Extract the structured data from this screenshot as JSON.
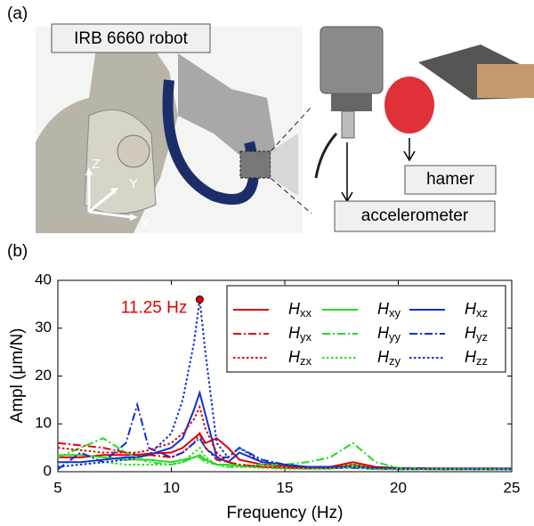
{
  "panel_a": {
    "label": "(a)",
    "robot_label": "IRB 6660 robot",
    "axis_labels": [
      "Z",
      "Y",
      "X"
    ],
    "hammer_label": "hamer",
    "sensor_label": "accelerometer"
  },
  "chart_data": {
    "type": "line",
    "panel_label": "(b)",
    "x_label": "Frequency (Hz)",
    "y_label": "Ampl (μm/N)",
    "xlim": [
      5,
      25
    ],
    "xticks": [
      5,
      10,
      15,
      20,
      25
    ],
    "ylim": [
      0,
      40
    ],
    "yticks": [
      0,
      10,
      20,
      30,
      40
    ],
    "legend": "upper right",
    "peak": {
      "x": 11.25,
      "y": 36,
      "label": "11.25 Hz",
      "color": "#e00000"
    },
    "x": [
      5,
      6,
      7,
      8,
      8.5,
      9,
      10,
      10.5,
      11,
      11.25,
      11.5,
      12,
      12.5,
      13,
      14,
      15,
      16,
      17,
      18,
      19,
      20,
      22,
      25
    ],
    "series": [
      {
        "name": "Hxx",
        "color": "#e00000",
        "dash": "solid",
        "values": [
          3,
          3,
          3.5,
          3.5,
          3.5,
          3.8,
          4,
          5,
          7,
          8,
          6,
          7,
          5,
          2.5,
          1.5,
          1.2,
          1,
          1,
          2,
          1,
          0.8,
          0.7,
          0.7
        ]
      },
      {
        "name": "Hxy",
        "color": "#22dd22",
        "dash": "solid",
        "values": [
          3.5,
          3.5,
          3,
          2.5,
          2.5,
          2.5,
          2,
          2.5,
          3,
          3.5,
          2.5,
          1.5,
          1.5,
          1.2,
          1,
          0.8,
          0.7,
          0.7,
          1.5,
          0.7,
          0.6,
          0.6,
          0.6
        ]
      },
      {
        "name": "Hxz",
        "color": "#1030d0",
        "dash": "solid",
        "values": [
          2,
          2,
          2.5,
          3,
          3,
          3.5,
          5,
          7,
          13,
          16.5,
          12,
          3,
          2,
          4,
          2,
          1.5,
          1,
          1,
          1,
          0.8,
          0.7,
          0.6,
          0.6
        ]
      },
      {
        "name": "Hyx",
        "color": "#e00000",
        "dash": "dashdot",
        "values": [
          6,
          5.5,
          5,
          4,
          3.5,
          3.5,
          3,
          4,
          6,
          8,
          5,
          2.5,
          2,
          1.5,
          1,
          0.8,
          0.7,
          0.7,
          1,
          0.7,
          0.6,
          0.5,
          0.5
        ]
      },
      {
        "name": "Hyy",
        "color": "#22dd22",
        "dash": "dashdot",
        "values": [
          3,
          5,
          7,
          4,
          3,
          2,
          1.5,
          2,
          3,
          3,
          2,
          1.5,
          1,
          1,
          1.5,
          1.5,
          2,
          3,
          6,
          2,
          0.8,
          0.6,
          0.5
        ]
      },
      {
        "name": "Hyz",
        "color": "#1030d0",
        "dash": "dashdot",
        "values": [
          0.5,
          4,
          2,
          6,
          14,
          5,
          3,
          4,
          6,
          7,
          5,
          3,
          3,
          5,
          2.5,
          1.5,
          1,
          0.8,
          0.8,
          0.6,
          0.5,
          0.5,
          0.5
        ]
      },
      {
        "name": "Hzx",
        "color": "#e00000",
        "dash": "dotted",
        "values": [
          5,
          4.5,
          4,
          4,
          4,
          4.5,
          6,
          8,
          11,
          13.5,
          9,
          4,
          2,
          1.5,
          1,
          0.8,
          0.7,
          0.7,
          1.5,
          0.7,
          0.6,
          0.5,
          0.5
        ]
      },
      {
        "name": "Hzy",
        "color": "#22dd22",
        "dash": "dotted",
        "values": [
          1,
          1.5,
          2,
          1.5,
          1.5,
          1.5,
          1.5,
          2,
          4,
          5,
          3,
          1.5,
          1,
          1,
          0.8,
          0.6,
          0.6,
          0.6,
          1,
          0.5,
          0.5,
          0.5,
          0.5
        ]
      },
      {
        "name": "Hzz",
        "color": "#1030d0",
        "dash": "dotted",
        "values": [
          1,
          1.5,
          2,
          2.5,
          3,
          3.5,
          8,
          15,
          27,
          36,
          25,
          6,
          3,
          5,
          2,
          1.5,
          1,
          1,
          1,
          0.8,
          0.7,
          0.6,
          0.5
        ]
      }
    ]
  }
}
